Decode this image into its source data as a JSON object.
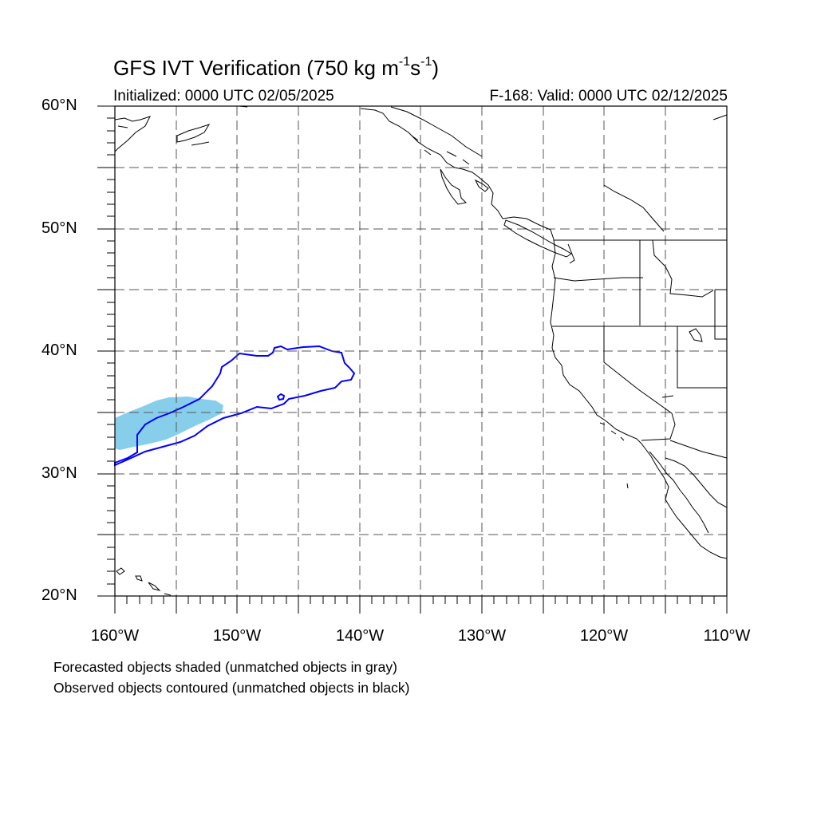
{
  "title": {
    "main": "GFS IVT Verification (750 kg m",
    "exp1": "-1",
    "mid": "s",
    "exp2": "-1",
    "end": ")"
  },
  "subtitle": {
    "left": "Initialized: 0000 UTC 02/05/2025",
    "right": "F-168: Valid: 0000 UTC 02/12/2025"
  },
  "map": {
    "lon_range": [
      -160,
      -110
    ],
    "lat_range": [
      20,
      60
    ],
    "lat_labels": [
      "60°N",
      "50°N",
      "40°N",
      "30°N",
      "20°N"
    ],
    "lon_labels": [
      "160°W",
      "150°W",
      "140°W",
      "130°W",
      "120°W",
      "110°W"
    ],
    "gridlines": "dashed every 5°",
    "forecast_color": "#87CEEB",
    "observed_color": "#0000ff"
  },
  "notes": {
    "line1": "Forecasted objects shaded (unmatched objects in gray)",
    "line2": "Observed objects contoured (unmatched objects in black)"
  }
}
